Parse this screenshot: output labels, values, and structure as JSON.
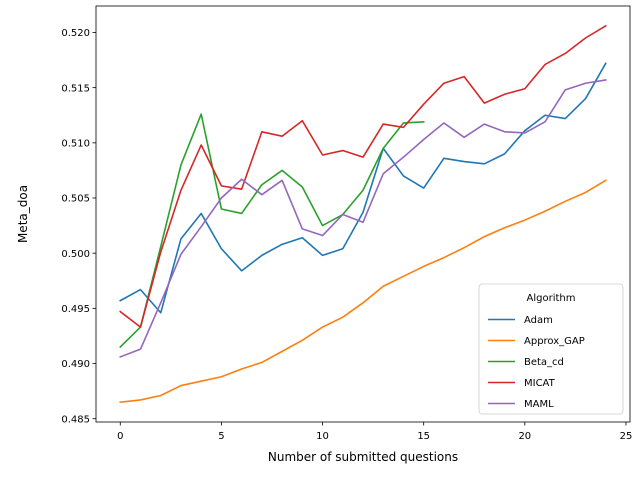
{
  "chart_data": {
    "type": "line",
    "title": "",
    "xlabel": "Number of submitted questions",
    "ylabel": "Meta_doa",
    "xlim": [
      -1.2,
      25.2
    ],
    "ylim": [
      0.4847,
      0.5224
    ],
    "x_ticks": [
      0,
      5,
      10,
      15,
      20,
      25
    ],
    "y_ticks": [
      0.485,
      0.49,
      0.495,
      0.5,
      0.505,
      0.51,
      0.515,
      0.52
    ],
    "y_tick_labels": [
      "0.485",
      "0.490",
      "0.495",
      "0.500",
      "0.505",
      "0.510",
      "0.515",
      "0.520"
    ],
    "grid": false,
    "legend": {
      "title": "Algorithm",
      "placement": "lower-right"
    },
    "series": [
      {
        "name": "Adam",
        "color": "#1f77b4",
        "x": [
          0,
          1,
          2,
          3,
          4,
          5,
          6,
          7,
          8,
          9,
          10,
          11,
          12,
          13,
          14,
          15,
          16,
          17,
          18,
          19,
          20,
          21,
          22,
          23,
          24
        ],
        "values": [
          0.4957,
          0.4967,
          0.4946,
          0.5013,
          0.5036,
          0.5004,
          0.4984,
          0.4998,
          0.5008,
          0.5014,
          0.4998,
          0.5004,
          0.5037,
          0.5095,
          0.507,
          0.5059,
          0.5086,
          0.5083,
          0.5081,
          0.509,
          0.5111,
          0.5125,
          0.5122,
          0.514,
          0.5172
        ]
      },
      {
        "name": "Approx_GAP",
        "color": "#ff7f0e",
        "x": [
          0,
          1,
          2,
          3,
          4,
          5,
          6,
          7,
          8,
          9,
          10,
          11,
          12,
          13,
          14,
          15,
          16,
          17,
          18,
          19,
          20,
          21,
          22,
          23,
          24
        ],
        "values": [
          0.4865,
          0.4867,
          0.4871,
          0.488,
          0.4884,
          0.4888,
          0.4895,
          0.4901,
          0.4911,
          0.4921,
          0.4933,
          0.4942,
          0.4955,
          0.497,
          0.4979,
          0.4988,
          0.4996,
          0.5005,
          0.5015,
          0.5023,
          0.503,
          0.5038,
          0.5047,
          0.5055,
          0.5066
        ]
      },
      {
        "name": "Beta_cd",
        "color": "#2ca02c",
        "x": [
          0,
          1,
          2,
          3,
          4,
          5,
          6,
          7,
          8,
          9,
          10,
          11,
          12,
          13,
          14,
          15
        ],
        "values": [
          0.4915,
          0.4933,
          0.5006,
          0.508,
          0.5126,
          0.504,
          0.5036,
          0.5062,
          0.5075,
          0.506,
          0.5025,
          0.5035,
          0.5057,
          0.5095,
          0.5118,
          0.5119
        ]
      },
      {
        "name": "MICAT",
        "color": "#d62728",
        "x": [
          0,
          1,
          2,
          3,
          4,
          5,
          6,
          7,
          8,
          9,
          10,
          11,
          12,
          13,
          14,
          15,
          16,
          17,
          18,
          19,
          20,
          21,
          22,
          23,
          24
        ],
        "values": [
          0.4947,
          0.4933,
          0.5001,
          0.5057,
          0.5098,
          0.5061,
          0.5058,
          0.511,
          0.5106,
          0.512,
          0.5089,
          0.5093,
          0.5087,
          0.5117,
          0.5114,
          0.5135,
          0.5154,
          0.516,
          0.5136,
          0.5144,
          0.5149,
          0.5171,
          0.5181,
          0.5195,
          0.5206
        ]
      },
      {
        "name": "MAML",
        "color": "#9467bd",
        "x": [
          0,
          1,
          2,
          3,
          4,
          5,
          6,
          7,
          8,
          9,
          10,
          11,
          12,
          13,
          14,
          15,
          16,
          17,
          18,
          19,
          20,
          21,
          22,
          23,
          24
        ],
        "values": [
          0.4906,
          0.4913,
          0.4955,
          0.4999,
          0.5024,
          0.505,
          0.5067,
          0.5053,
          0.5066,
          0.5022,
          0.5016,
          0.5035,
          0.5028,
          0.5072,
          0.5087,
          0.5103,
          0.5118,
          0.5105,
          0.5117,
          0.511,
          0.5109,
          0.5119,
          0.5148,
          0.5154,
          0.5157
        ]
      }
    ]
  }
}
